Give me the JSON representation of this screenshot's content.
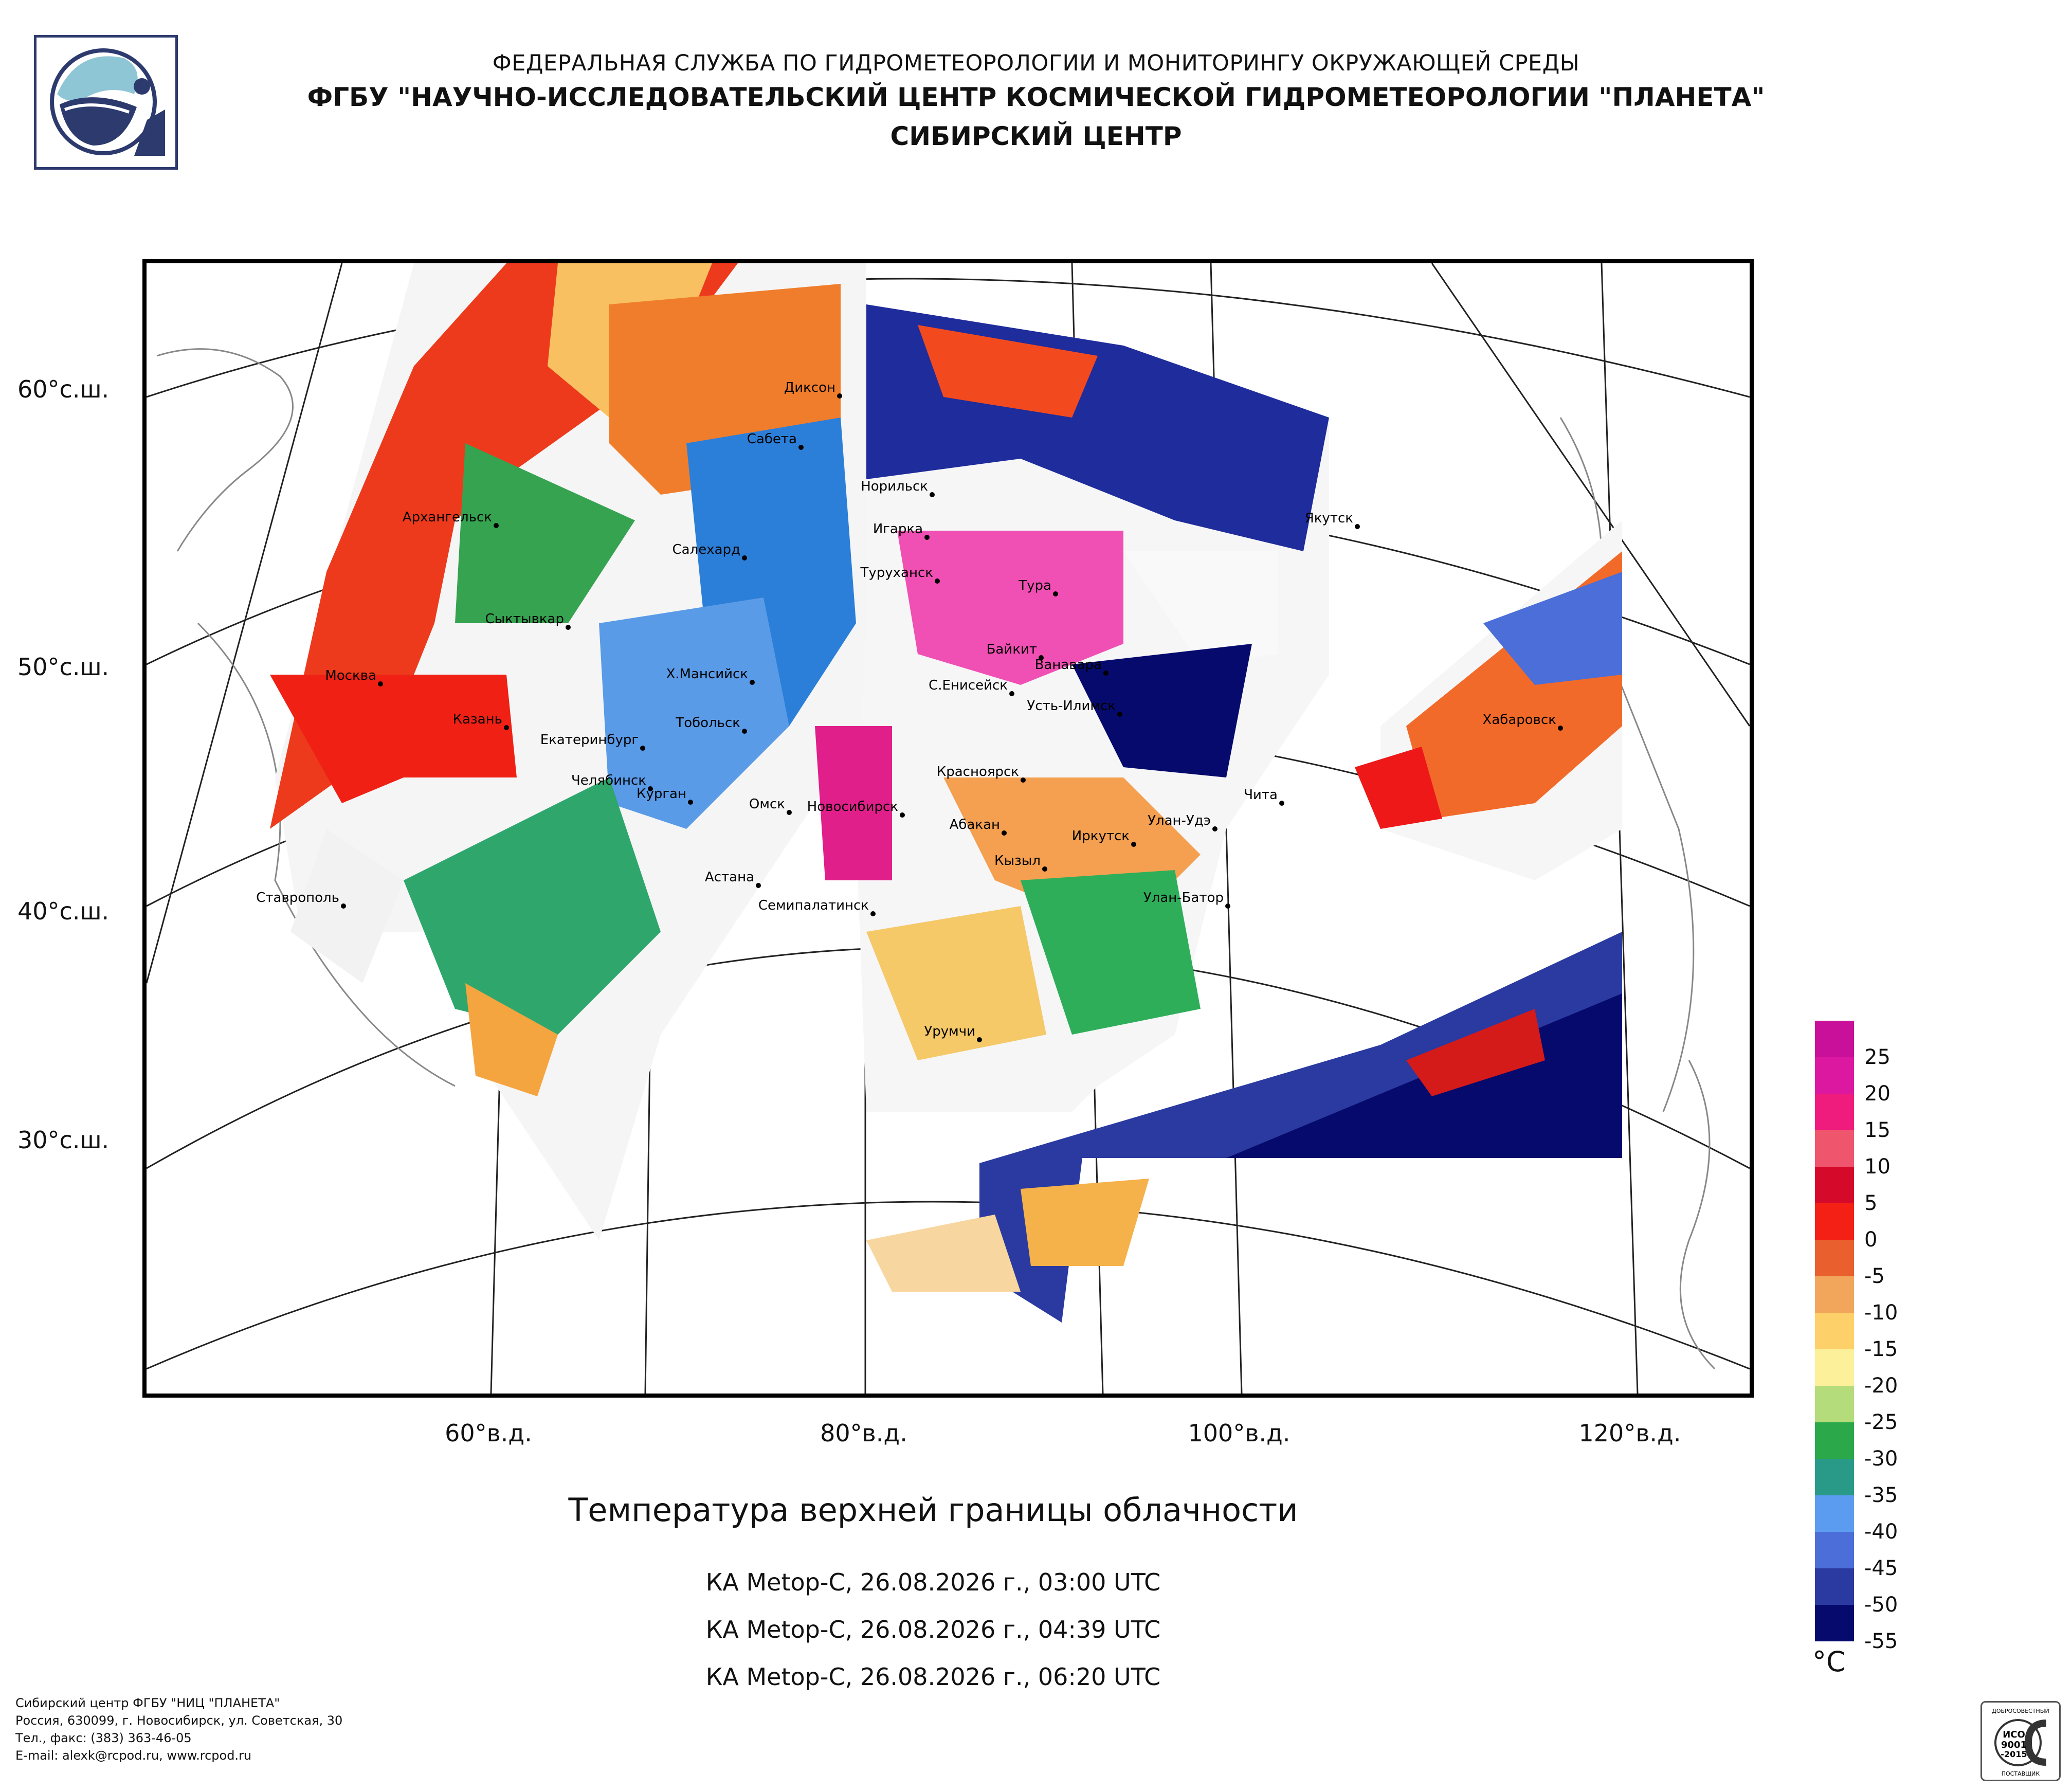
{
  "header": {
    "line1": "ФЕДЕРАЛЬНАЯ СЛУЖБА ПО ГИДРОМЕТЕОРОЛОГИИ И МОНИТОРИНГУ ОКРУЖАЮЩЕЙ СРЕДЫ",
    "line2": "ФГБУ \"НАУЧНО-ИССЛЕДОВАТЕЛЬСКИЙ ЦЕНТР КОСМИЧЕСКОЙ ГИДРОМЕТЕОРОЛОГИИ \"ПЛАНЕТА\"",
    "line3": "СИБИРСКИЙ ЦЕНТР"
  },
  "map": {
    "lat_labels": [
      "60°с.ш.",
      "50°с.ш.",
      "40°с.ш.",
      "30°с.ш."
    ],
    "lon_labels": [
      "60°в.д.",
      "80°в.д.",
      "100°в.д.",
      "120°в.д."
    ],
    "cities": [
      "Диксон",
      "Сабета",
      "Норильск",
      "Архангельск",
      "Игарка",
      "Салехард",
      "Якутск",
      "Туруханск",
      "Тура",
      "Сыктывкар",
      "Байкит",
      "Ванавара",
      "Москва",
      "Х.Мансийск",
      "С.Енисейск",
      "Усть-Илимск",
      "Казань",
      "Тобольск",
      "Хабаровск",
      "Екатеринбург",
      "Красноярск",
      "Челябинск",
      "Курган",
      "Омск",
      "Чита",
      "Новосибирск",
      "Абакан",
      "Улан-Удэ",
      "Иркутск",
      "Кызыл",
      "Астана",
      "Ставрополь",
      "Семипалатинск",
      "Улан-Батор",
      "Урумчи"
    ]
  },
  "title": "Температура верхней границы облачности",
  "satellite_passes": [
    "КА Metop-C, 26.08.2026 г., 03:00 UTC",
    "КА Metop-C, 26.08.2026 г., 04:39 UTC",
    "КА Metop-C, 26.08.2026 г., 06:20 UTC"
  ],
  "legend": {
    "unit": "°C",
    "labels": [
      "25",
      "20",
      "15",
      "10",
      "5",
      "0",
      "-5",
      "-10",
      "-15",
      "-20",
      "-25",
      "-30",
      "-35",
      "-40",
      "-45",
      "-50",
      "-55"
    ],
    "colors": [
      "#c8109a",
      "#dd18a0",
      "#ef1b7d",
      "#f0556e",
      "#d50a2a",
      "#f41f15",
      "#ea5f2e",
      "#f2a65b",
      "#fdd06a",
      "#fdf09a",
      "#b4dc7a",
      "#2aa84a",
      "#2a9a88",
      "#5c9cf0",
      "#4b6ed8",
      "#2a3aa0",
      "#060a6c"
    ]
  },
  "footer": {
    "line1": "Сибирский центр ФГБУ \"НИЦ \"ПЛАНЕТА\"",
    "line2": "Россия, 630099, г. Новосибирск, ул. Советская, 30",
    "line3": "Тел., факс: (383) 363-46-05",
    "line4": "E-mail: alexk@rcpod.ru, www.rcpod.ru"
  },
  "certificate": {
    "top": "ДОБРОСОВЕСТНЫЙ",
    "code1": "ИСО",
    "code2": "9001",
    "code3": "-2015",
    "bottom": "ПОСТАВЩИК"
  }
}
